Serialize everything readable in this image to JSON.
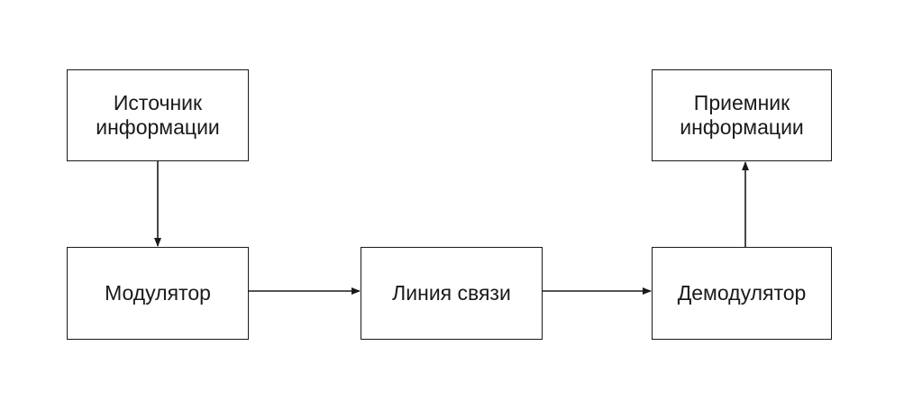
{
  "diagram": {
    "nodes": {
      "source": {
        "label": "Источник\nинформации"
      },
      "modulator": {
        "label": "Модулятор"
      },
      "line": {
        "label": "Линия связи"
      },
      "demodulator": {
        "label": "Демодулятор"
      },
      "receiver": {
        "label": "Приемник\nинформации"
      }
    },
    "edges": [
      {
        "from": "source",
        "to": "modulator"
      },
      {
        "from": "modulator",
        "to": "line"
      },
      {
        "from": "line",
        "to": "demodulator"
      },
      {
        "from": "demodulator",
        "to": "receiver"
      }
    ],
    "colors": {
      "stroke": "#1a1a1a",
      "background": "#ffffff"
    }
  }
}
